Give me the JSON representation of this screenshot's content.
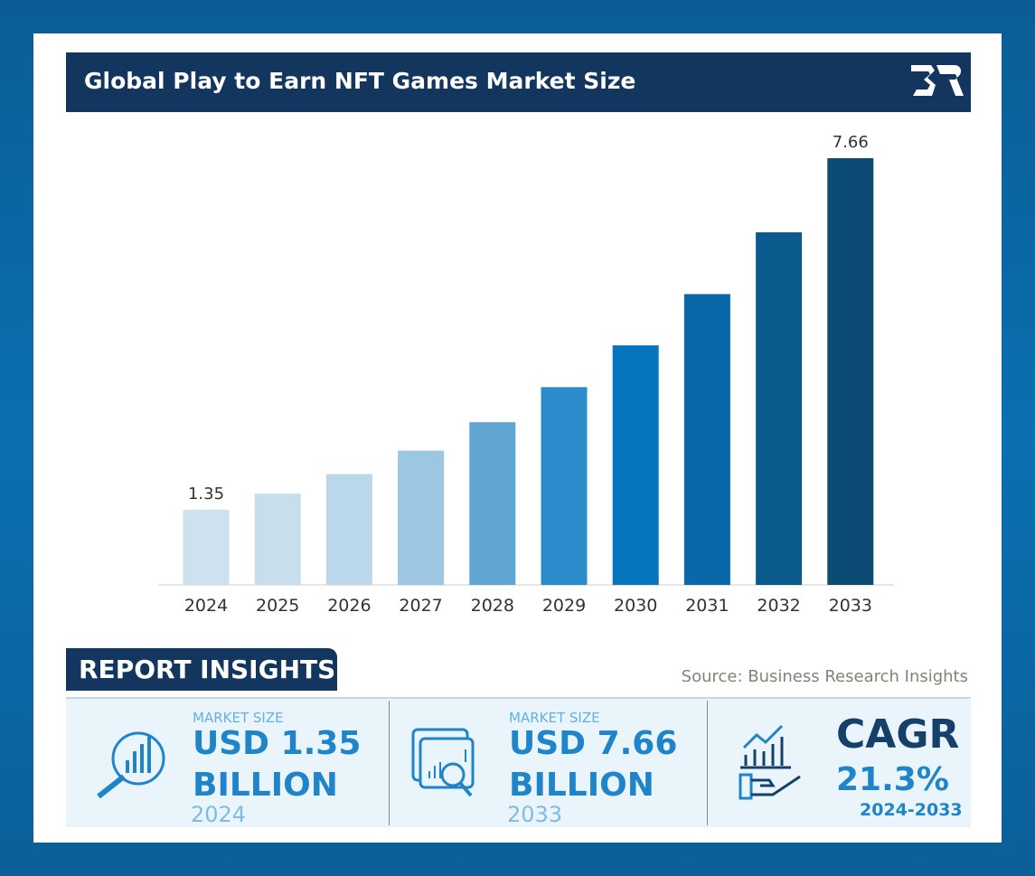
{
  "title": "Global Play to Earn NFT Games Market Size",
  "logo_text": "BR",
  "chart_data": {
    "type": "bar",
    "title": "Global Play to Earn NFT Games Market Size",
    "categories": [
      "2024",
      "2025",
      "2026",
      "2027",
      "2028",
      "2029",
      "2030",
      "2031",
      "2032",
      "2033"
    ],
    "values": [
      1.35,
      1.64,
      1.99,
      2.41,
      2.92,
      3.55,
      4.3,
      5.22,
      6.33,
      7.66
    ],
    "data_labels": {
      "0": "1.35",
      "9": "7.66"
    },
    "colors": [
      "#cde2ee",
      "#c7dfed",
      "#bad8ea",
      "#9cc6e1",
      "#5fa6d3",
      "#2b8ccc",
      "#0774be",
      "#0968a9",
      "#0a5a8e",
      "#0c4b74"
    ],
    "xlabel": "",
    "ylabel": "",
    "grid": false
  },
  "insights": {
    "heading": "REPORT INSIGHTS",
    "source": "Source: Business Research Insights",
    "cards": [
      {
        "label": "MARKET SIZE",
        "value": "USD 1.35",
        "unit": "BILLION",
        "year": "2024",
        "icon": "magnifier-chart-icon"
      },
      {
        "label": "MARKET SIZE",
        "value": "USD 7.66",
        "unit": "BILLION",
        "year": "2033",
        "icon": "browser-analytics-icon"
      },
      {
        "label": "CAGR",
        "value": "21.3%",
        "year": "2024-2033",
        "icon": "hand-growth-chart-icon"
      }
    ]
  }
}
